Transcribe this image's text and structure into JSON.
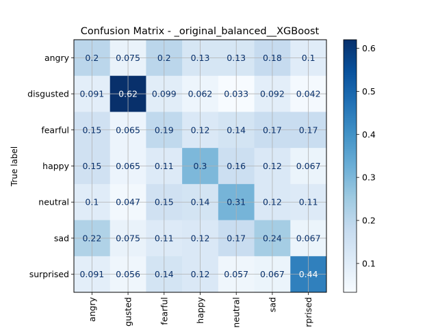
{
  "chart_data": {
    "type": "heatmap",
    "title": "Confusion Matrix - _original_balanced__XGBoost",
    "ylabel": "True label",
    "xlabel": "",
    "row_labels": [
      "angry",
      "disgusted",
      "fearful",
      "happy",
      "neutral",
      "sad",
      "surprised"
    ],
    "col_labels": [
      "angry",
      "disgusted",
      "fearful",
      "happy",
      "neutral",
      "sad",
      "surprised"
    ],
    "visible_col_tick_text": [
      "angry",
      "gusted",
      "fearful",
      "happy",
      "neutral",
      "sad",
      "rprised"
    ],
    "cell_text": [
      [
        "0.2",
        "0.075",
        "0.2",
        "0.13",
        "0.13",
        "0.18",
        "0.1"
      ],
      [
        "0.091",
        "0.62",
        "0.099",
        "0.062",
        "0.033",
        "0.092",
        "0.042"
      ],
      [
        "0.15",
        "0.065",
        "0.19",
        "0.12",
        "0.14",
        "0.17",
        "0.17"
      ],
      [
        "0.15",
        "0.065",
        "0.11",
        "0.3",
        "0.16",
        "0.12",
        "0.067"
      ],
      [
        "0.1",
        "0.047",
        "0.15",
        "0.14",
        "0.31",
        "0.12",
        "0.11"
      ],
      [
        "0.22",
        "0.075",
        "0.11",
        "0.12",
        "0.17",
        "0.24",
        "0.067"
      ],
      [
        "0.091",
        "0.056",
        "0.14",
        "0.12",
        "0.057",
        "0.067",
        "0.44"
      ]
    ],
    "values": [
      [
        0.2,
        0.075,
        0.2,
        0.13,
        0.13,
        0.18,
        0.1
      ],
      [
        0.091,
        0.62,
        0.099,
        0.062,
        0.033,
        0.092,
        0.042
      ],
      [
        0.15,
        0.065,
        0.19,
        0.12,
        0.14,
        0.17,
        0.17
      ],
      [
        0.15,
        0.065,
        0.11,
        0.3,
        0.16,
        0.12,
        0.067
      ],
      [
        0.1,
        0.047,
        0.15,
        0.14,
        0.31,
        0.12,
        0.11
      ],
      [
        0.22,
        0.075,
        0.11,
        0.12,
        0.17,
        0.24,
        0.067
      ],
      [
        0.091,
        0.056,
        0.14,
        0.12,
        0.057,
        0.067,
        0.44
      ]
    ],
    "colormap": "Blues",
    "color_range": [
      0.033,
      0.62
    ],
    "colorbar_ticks": [
      "0.1",
      "0.2",
      "0.3",
      "0.4",
      "0.5",
      "0.6"
    ],
    "grid": true,
    "colors": {
      "dark_cell_text": "#ffffff",
      "light_cell_text": "#08306b",
      "grid_line": "#b0b0b0",
      "axis": "#000000"
    }
  }
}
